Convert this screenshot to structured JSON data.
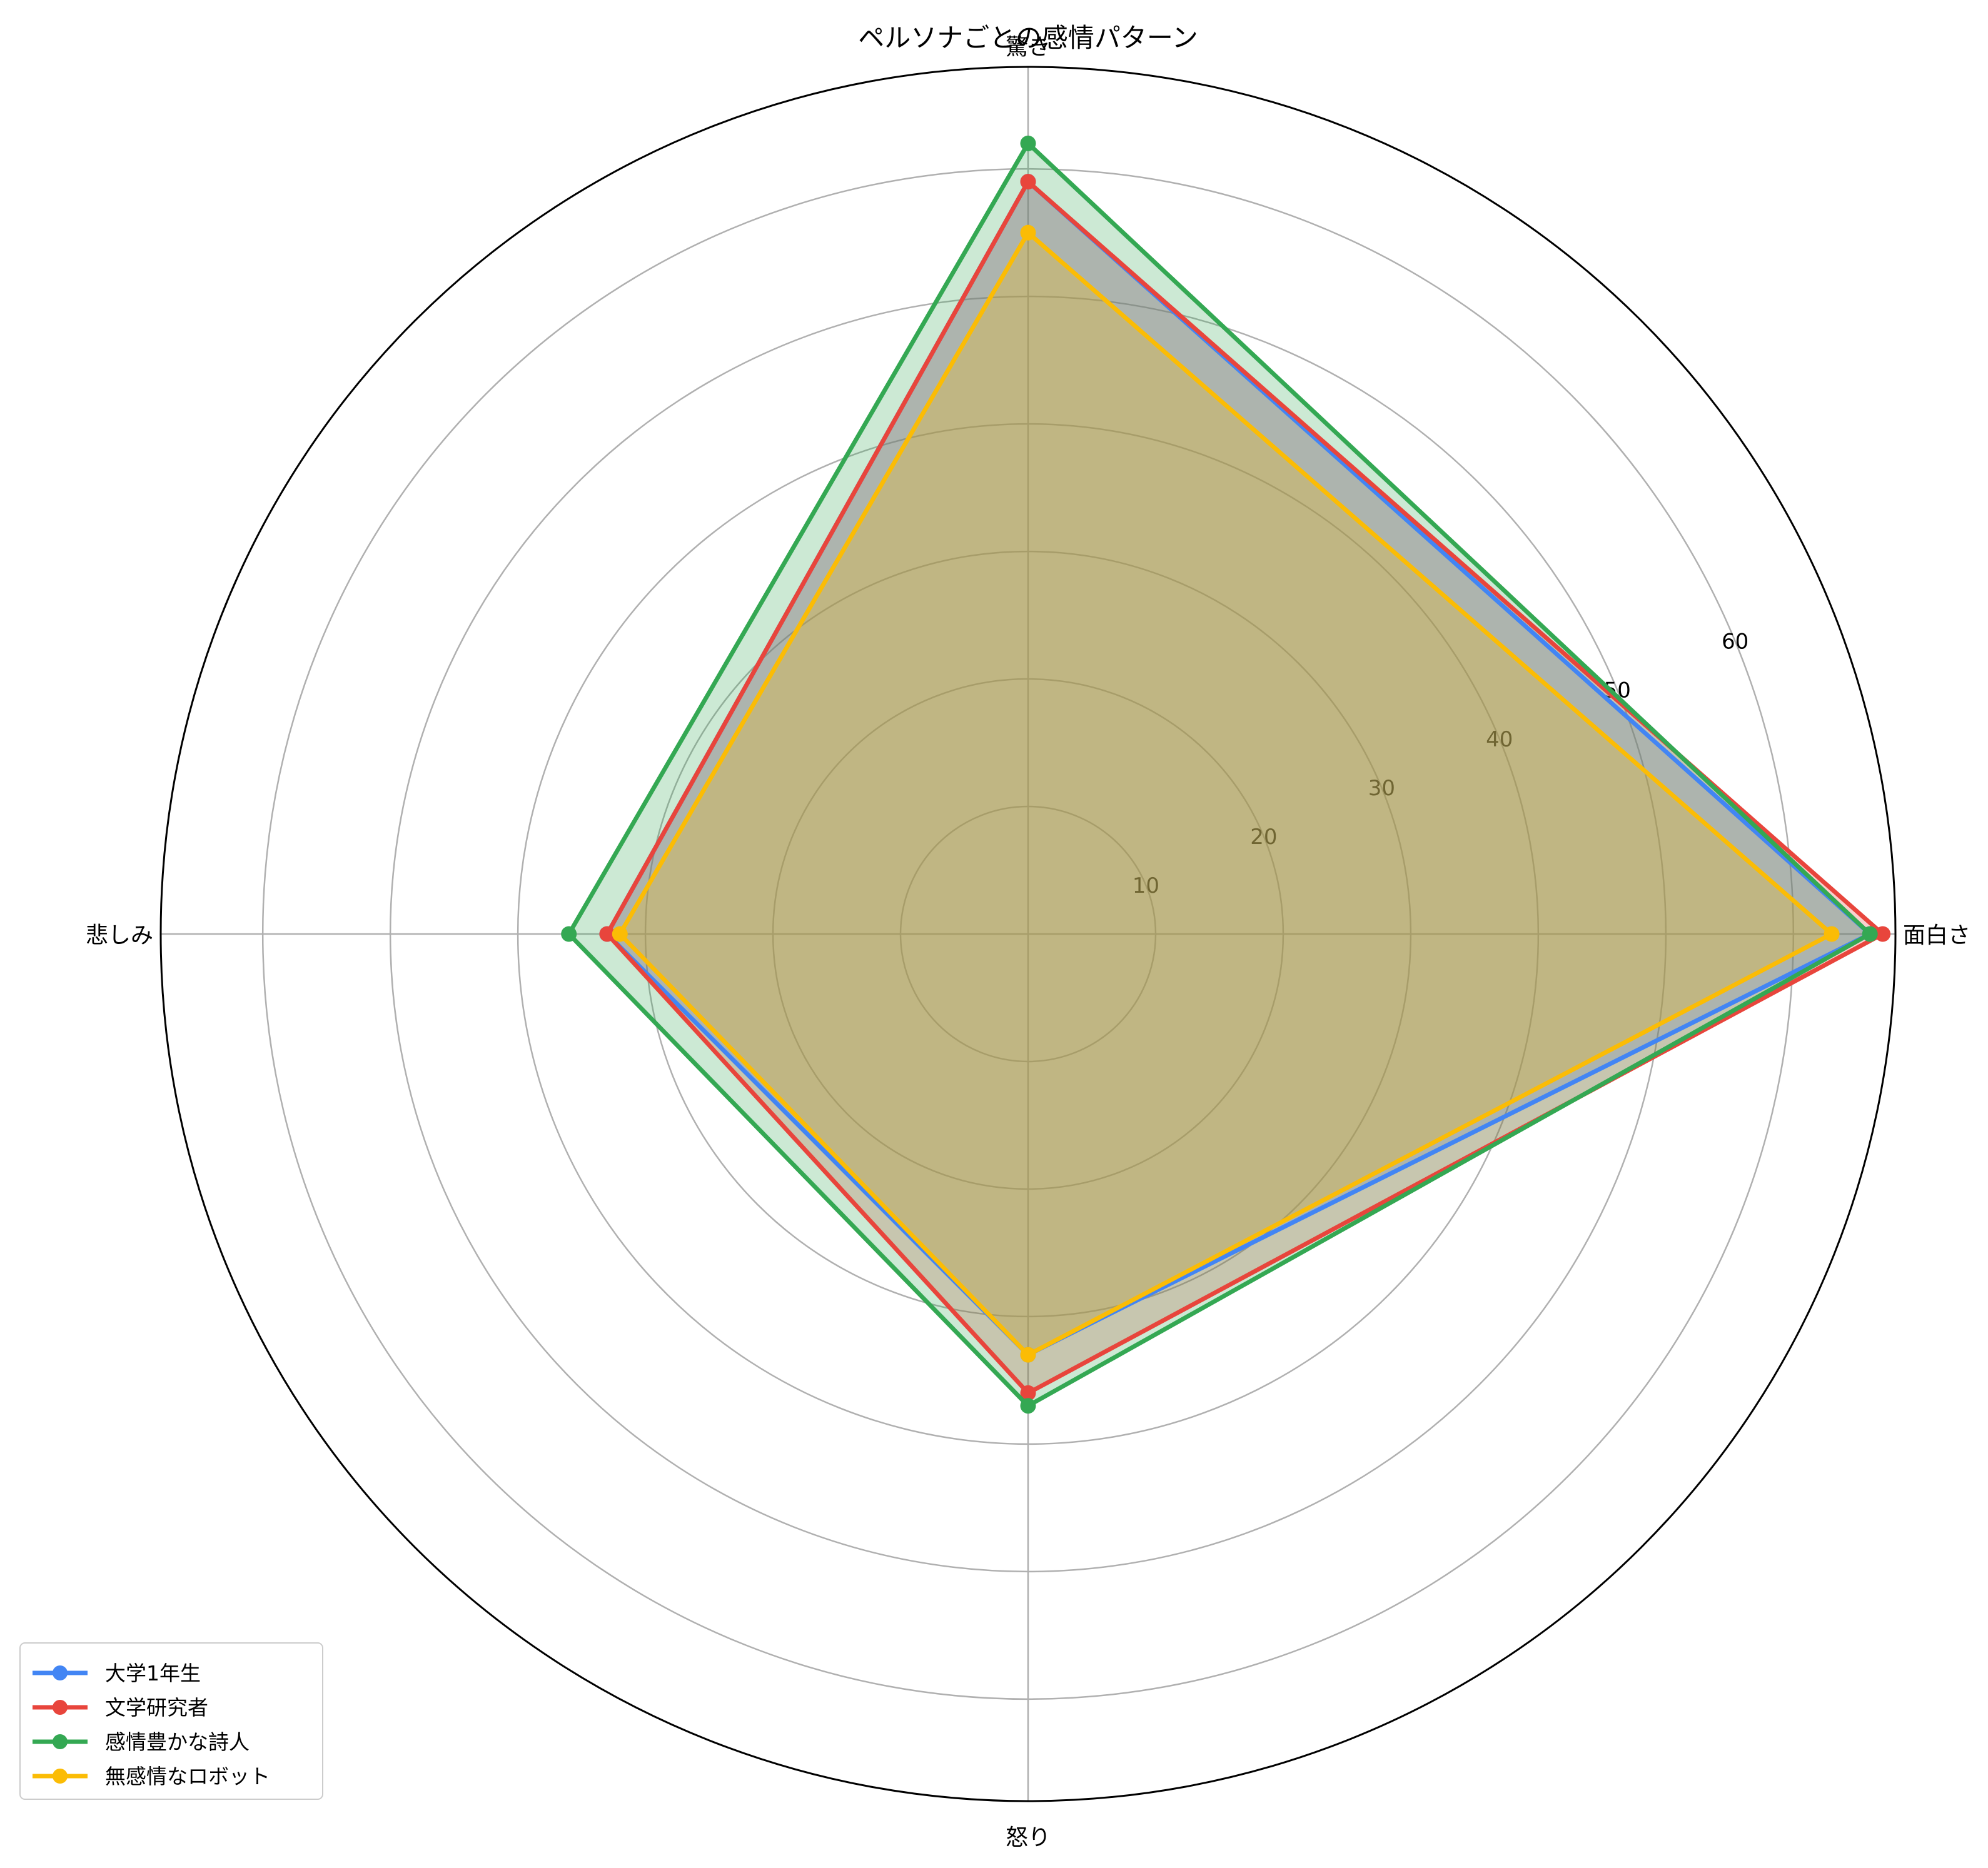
{
  "chart_data": {
    "type": "radar",
    "title": "ペルソナごとの感情パターン",
    "categories": [
      "面白さ",
      "驚き",
      "悲しみ",
      "怒り"
    ],
    "rlim": [
      0,
      68
    ],
    "rticks": [
      10,
      20,
      30,
      40,
      50,
      60
    ],
    "rtick_labels": [
      "10",
      "20",
      "30",
      "40",
      "50",
      "60"
    ],
    "grid": true,
    "legend": {
      "position": "lower-left"
    },
    "series": [
      {
        "name": "大学1年生",
        "color": "#4285f4",
        "values": [
          66,
          59,
          33,
          33
        ]
      },
      {
        "name": "文学研究者",
        "color": "#e8453c",
        "values": [
          67,
          59,
          33,
          36
        ]
      },
      {
        "name": "感情豊かな詩人",
        "color": "#34a853",
        "values": [
          66,
          62,
          36,
          37
        ]
      },
      {
        "name": "無感情なロボット",
        "color": "#fbbc05",
        "values": [
          63,
          55,
          32,
          33
        ]
      }
    ]
  }
}
